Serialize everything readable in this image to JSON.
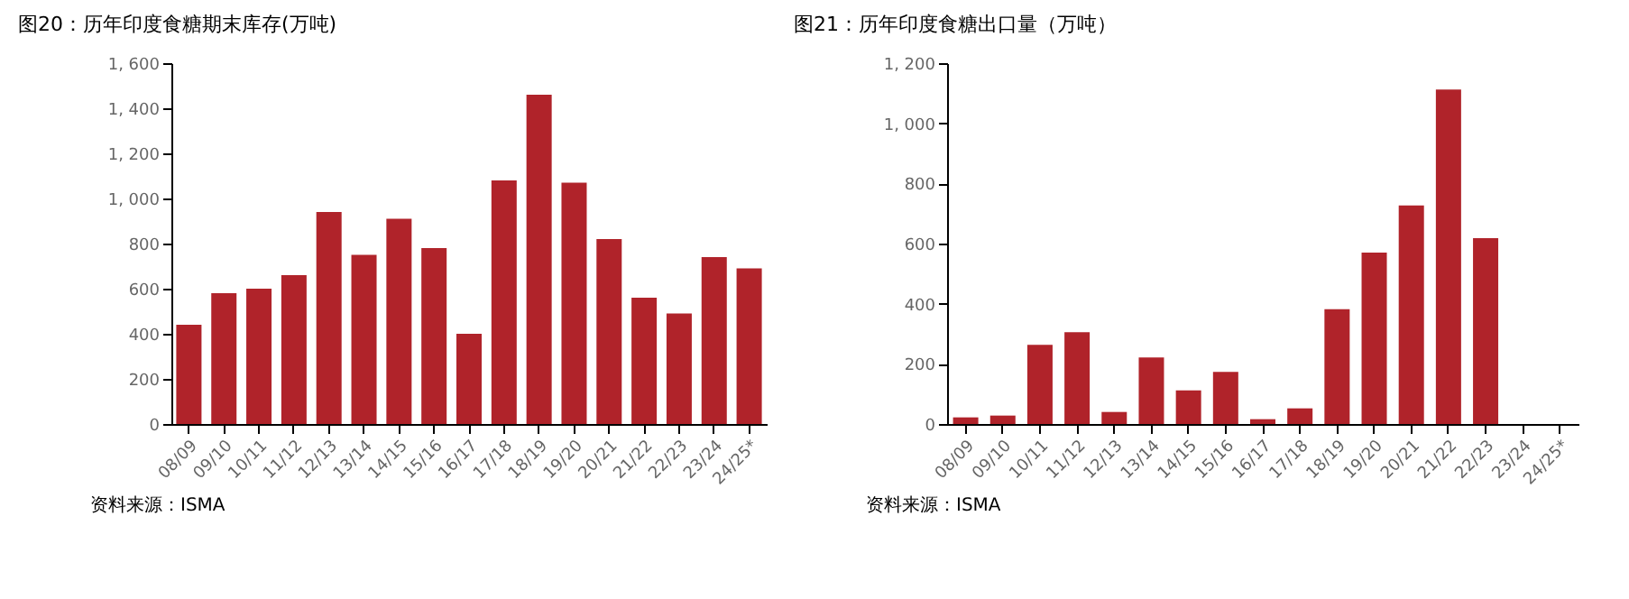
{
  "chart_data": [
    {
      "type": "bar",
      "title": "图20：历年印度食糖期末库存(万吨)",
      "categories": [
        "08/09",
        "09/10",
        "10/11",
        "11/12",
        "12/13",
        "13/14",
        "14/15",
        "15/16",
        "16/17",
        "17/18",
        "18/19",
        "19/20",
        "20/21",
        "21/22",
        "22/23",
        "23/24",
        "24/25*"
      ],
      "values": [
        440,
        580,
        600,
        660,
        940,
        750,
        910,
        780,
        400,
        1080,
        1460,
        1070,
        820,
        560,
        490,
        740,
        690
      ],
      "color": "#b0232a",
      "ylim": [
        0,
        1600
      ],
      "yticks": [
        0,
        200,
        400,
        600,
        800,
        {
          "value": 1000,
          "label": "1, 000"
        },
        {
          "value": 1200,
          "label": "1, 200"
        },
        {
          "value": 1400,
          "label": "1, 400"
        },
        {
          "value": 1600,
          "label": "1, 600"
        }
      ],
      "grid": false,
      "annotations": [
        "资料来源：ISMA"
      ]
    },
    {
      "type": "bar",
      "title": "图21：历年印度食糖出口量（万吨）",
      "categories": [
        "08/09",
        "09/10",
        "10/11",
        "11/12",
        "12/13",
        "13/14",
        "14/15",
        "15/16",
        "16/17",
        "17/18",
        "18/19",
        "19/20",
        "20/21",
        "21/22",
        "22/23",
        "23/24",
        "24/25*"
      ],
      "values": [
        22,
        28,
        263,
        305,
        40,
        221,
        112,
        173,
        16,
        52,
        382,
        570,
        727,
        1112,
        618,
        null,
        null
      ],
      "color": "#b0232a",
      "ylim": [
        0,
        1200
      ],
      "yticks": [
        0,
        200,
        400,
        600,
        800,
        {
          "value": 1000,
          "label": "1, 000"
        },
        {
          "value": 1200,
          "label": "1, 200"
        }
      ],
      "grid": false,
      "annotations": [
        "资料来源：ISMA"
      ]
    }
  ]
}
